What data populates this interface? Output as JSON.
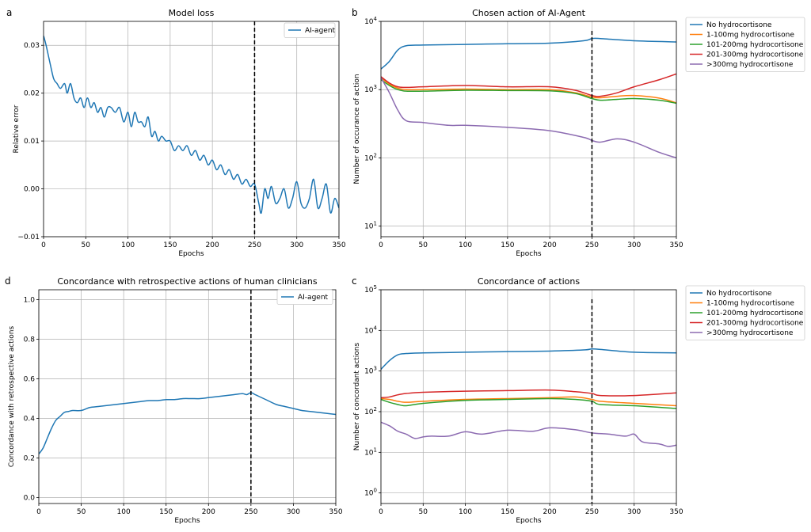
{
  "chart_data": [
    {
      "id": "a",
      "panel_label": "a",
      "type": "line",
      "title": "Model loss",
      "xlabel": "Epochs",
      "ylabel": "Relative error",
      "xlim": [
        0,
        350
      ],
      "ylim": [
        -0.01,
        0.035
      ],
      "yscale": "linear",
      "xticks": [
        0,
        50,
        100,
        150,
        200,
        250,
        300,
        350
      ],
      "yticks": [
        -0.01,
        0.0,
        0.01,
        0.02,
        0.03
      ],
      "ytick_labels": [
        "−0.01",
        "0.00",
        "0.01",
        "0.02",
        "0.03"
      ],
      "vline_x": 250,
      "grid": true,
      "legend": "top-right",
      "series": [
        {
          "name": "AI-agent",
          "color": "#1f77b4",
          "x": [
            0,
            3,
            8,
            12,
            16,
            20,
            25,
            28,
            32,
            36,
            40,
            44,
            48,
            52,
            56,
            60,
            64,
            68,
            72,
            76,
            80,
            85,
            90,
            95,
            100,
            104,
            108,
            112,
            116,
            120,
            124,
            128,
            132,
            136,
            140,
            145,
            150,
            155,
            160,
            165,
            170,
            175,
            180,
            185,
            190,
            195,
            200,
            205,
            210,
            215,
            220,
            225,
            230,
            235,
            240,
            245,
            250,
            255,
            258,
            262,
            266,
            270,
            275,
            280,
            285,
            290,
            295,
            300,
            305,
            310,
            315,
            320,
            325,
            330,
            335,
            340,
            345,
            350
          ],
          "y": [
            0.032,
            0.03,
            0.026,
            0.023,
            0.022,
            0.021,
            0.022,
            0.02,
            0.022,
            0.019,
            0.018,
            0.019,
            0.017,
            0.019,
            0.017,
            0.018,
            0.016,
            0.017,
            0.015,
            0.017,
            0.017,
            0.016,
            0.017,
            0.014,
            0.016,
            0.013,
            0.016,
            0.014,
            0.014,
            0.013,
            0.015,
            0.011,
            0.012,
            0.01,
            0.011,
            0.01,
            0.01,
            0.008,
            0.009,
            0.008,
            0.009,
            0.007,
            0.008,
            0.006,
            0.007,
            0.005,
            0.006,
            0.004,
            0.005,
            0.003,
            0.004,
            0.002,
            0.003,
            0.001,
            0.002,
            0.0005,
            0.001,
            -0.003,
            -0.005,
            0.0,
            -0.002,
            0.0005,
            -0.003,
            -0.002,
            0.0,
            -0.004,
            -0.002,
            0.0015,
            -0.003,
            -0.004,
            -0.002,
            0.002,
            -0.004,
            -0.002,
            0.001,
            -0.005,
            -0.002,
            -0.004
          ]
        }
      ]
    },
    {
      "id": "b",
      "panel_label": "b",
      "type": "line",
      "title": "Chosen action of AI-Agent",
      "xlabel": "Epochs",
      "ylabel": "Number of occurance of action",
      "xlim": [
        0,
        350
      ],
      "ylim": [
        7,
        10000
      ],
      "yscale": "log",
      "xticks": [
        0,
        50,
        100,
        150,
        200,
        250,
        300,
        350
      ],
      "yticks": [
        10,
        100,
        1000,
        10000
      ],
      "ytick_exp": [
        "1",
        "2",
        "3",
        "4"
      ],
      "vline_x": 250,
      "grid": true,
      "legend": "outside-right",
      "series": [
        {
          "name": "No hydrocortisone",
          "color": "#1f77b4",
          "x": [
            0,
            10,
            20,
            30,
            50,
            100,
            150,
            200,
            240,
            250,
            260,
            300,
            350
          ],
          "y": [
            2000,
            2600,
            3800,
            4400,
            4500,
            4600,
            4700,
            4800,
            5200,
            5600,
            5600,
            5200,
            5000
          ]
        },
        {
          "name": "1-100mg hydrocortisone",
          "color": "#ff7f0e",
          "x": [
            0,
            10,
            20,
            30,
            50,
            100,
            150,
            200,
            230,
            250,
            260,
            280,
            300,
            330,
            350
          ],
          "y": [
            1500,
            1200,
            1050,
            1000,
            1000,
            1020,
            1000,
            1000,
            900,
            780,
            760,
            800,
            820,
            750,
            640
          ]
        },
        {
          "name": "101-200mg hydrocortisone",
          "color": "#2ca02c",
          "x": [
            0,
            10,
            20,
            30,
            50,
            100,
            150,
            200,
            230,
            250,
            260,
            280,
            300,
            330,
            350
          ],
          "y": [
            1400,
            1150,
            1000,
            950,
            950,
            980,
            970,
            960,
            880,
            740,
            700,
            720,
            740,
            700,
            630
          ]
        },
        {
          "name": "201-300mg hydrocortisone",
          "color": "#d62728",
          "x": [
            0,
            10,
            20,
            30,
            50,
            100,
            150,
            200,
            230,
            250,
            260,
            280,
            300,
            330,
            350
          ],
          "y": [
            1550,
            1250,
            1100,
            1080,
            1100,
            1150,
            1100,
            1100,
            980,
            820,
            800,
            900,
            1100,
            1400,
            1700
          ]
        },
        {
          "name": ">300mg hydrocortisone",
          "color": "#8c6bb1",
          "x": [
            0,
            10,
            20,
            30,
            50,
            80,
            100,
            150,
            200,
            240,
            250,
            260,
            280,
            300,
            330,
            350
          ],
          "y": [
            1500,
            900,
            500,
            350,
            330,
            300,
            300,
            280,
            250,
            200,
            180,
            170,
            190,
            170,
            120,
            100
          ]
        }
      ]
    },
    {
      "id": "d",
      "panel_label": "d",
      "type": "line",
      "title": "Concordance with retrospective actions of human clinicians",
      "xlabel": "Epochs",
      "ylabel": "Concordance with retrospective actions",
      "xlim": [
        0,
        350
      ],
      "ylim": [
        -0.03,
        1.05
      ],
      "yscale": "linear",
      "xticks": [
        0,
        50,
        100,
        150,
        200,
        250,
        300,
        350
      ],
      "yticks": [
        0.0,
        0.2,
        0.4,
        0.6,
        0.8,
        1.0
      ],
      "ytick_labels": [
        "0.0",
        "0.2",
        "0.4",
        "0.6",
        "0.8",
        "1.0"
      ],
      "vline_x": 250,
      "grid": true,
      "legend": "top-right",
      "series": [
        {
          "name": "AI-agent",
          "color": "#1f77b4",
          "x": [
            0,
            5,
            10,
            15,
            20,
            25,
            30,
            35,
            40,
            50,
            60,
            70,
            80,
            90,
            100,
            110,
            120,
            130,
            140,
            150,
            160,
            170,
            180,
            190,
            200,
            210,
            220,
            230,
            240,
            245,
            250,
            255,
            260,
            270,
            280,
            290,
            300,
            310,
            320,
            330,
            340,
            350
          ],
          "y": [
            0.22,
            0.25,
            0.3,
            0.35,
            0.39,
            0.41,
            0.43,
            0.435,
            0.44,
            0.44,
            0.455,
            0.46,
            0.465,
            0.47,
            0.475,
            0.48,
            0.485,
            0.49,
            0.49,
            0.495,
            0.495,
            0.5,
            0.5,
            0.5,
            0.505,
            0.51,
            0.515,
            0.52,
            0.525,
            0.52,
            0.53,
            0.52,
            0.51,
            0.49,
            0.47,
            0.46,
            0.45,
            0.44,
            0.435,
            0.43,
            0.425,
            0.42
          ]
        }
      ]
    },
    {
      "id": "c",
      "panel_label": "c",
      "type": "line",
      "title": "Concordance of actions",
      "xlabel": "Epochs",
      "ylabel": "Number of concordant actions",
      "xlim": [
        0,
        350
      ],
      "ylim": [
        0.55,
        100000
      ],
      "yscale": "log",
      "xticks": [
        0,
        50,
        100,
        150,
        200,
        250,
        300,
        350
      ],
      "yticks": [
        1,
        10,
        100,
        1000,
        10000,
        100000
      ],
      "ytick_exp": [
        "0",
        "1",
        "2",
        "3",
        "4",
        "5"
      ],
      "vline_x": 250,
      "grid": true,
      "legend": "outside-right",
      "series": [
        {
          "name": "No hydrocortisone",
          "color": "#1f77b4",
          "x": [
            0,
            10,
            20,
            30,
            50,
            100,
            150,
            200,
            240,
            250,
            260,
            300,
            350
          ],
          "y": [
            1100,
            1800,
            2500,
            2700,
            2800,
            2900,
            3000,
            3100,
            3300,
            3500,
            3400,
            2900,
            2800
          ]
        },
        {
          "name": "1-100mg hydrocortisone",
          "color": "#ff7f0e",
          "x": [
            0,
            10,
            20,
            30,
            50,
            100,
            150,
            200,
            230,
            250,
            260,
            300,
            350
          ],
          "y": [
            210,
            200,
            180,
            170,
            180,
            200,
            210,
            220,
            230,
            200,
            180,
            160,
            140
          ]
        },
        {
          "name": "101-200mg hydrocortisone",
          "color": "#2ca02c",
          "x": [
            0,
            10,
            20,
            30,
            50,
            100,
            150,
            200,
            230,
            250,
            260,
            300,
            350
          ],
          "y": [
            200,
            170,
            150,
            140,
            160,
            190,
            200,
            210,
            200,
            180,
            150,
            140,
            120
          ]
        },
        {
          "name": "201-300mg hydrocortisone",
          "color": "#d62728",
          "x": [
            0,
            10,
            20,
            30,
            50,
            100,
            150,
            200,
            230,
            250,
            260,
            300,
            350
          ],
          "y": [
            220,
            230,
            260,
            280,
            300,
            320,
            330,
            340,
            310,
            280,
            250,
            250,
            290
          ]
        },
        {
          "name": ">300mg hydrocortisone",
          "color": "#8c6bb1",
          "x": [
            0,
            10,
            20,
            30,
            40,
            50,
            60,
            80,
            100,
            120,
            150,
            180,
            200,
            230,
            250,
            270,
            290,
            300,
            310,
            330,
            340,
            350
          ],
          "y": [
            55,
            45,
            33,
            28,
            22,
            24,
            25,
            25,
            32,
            28,
            35,
            33,
            40,
            36,
            30,
            28,
            25,
            28,
            18,
            16,
            14,
            15
          ]
        }
      ]
    }
  ]
}
